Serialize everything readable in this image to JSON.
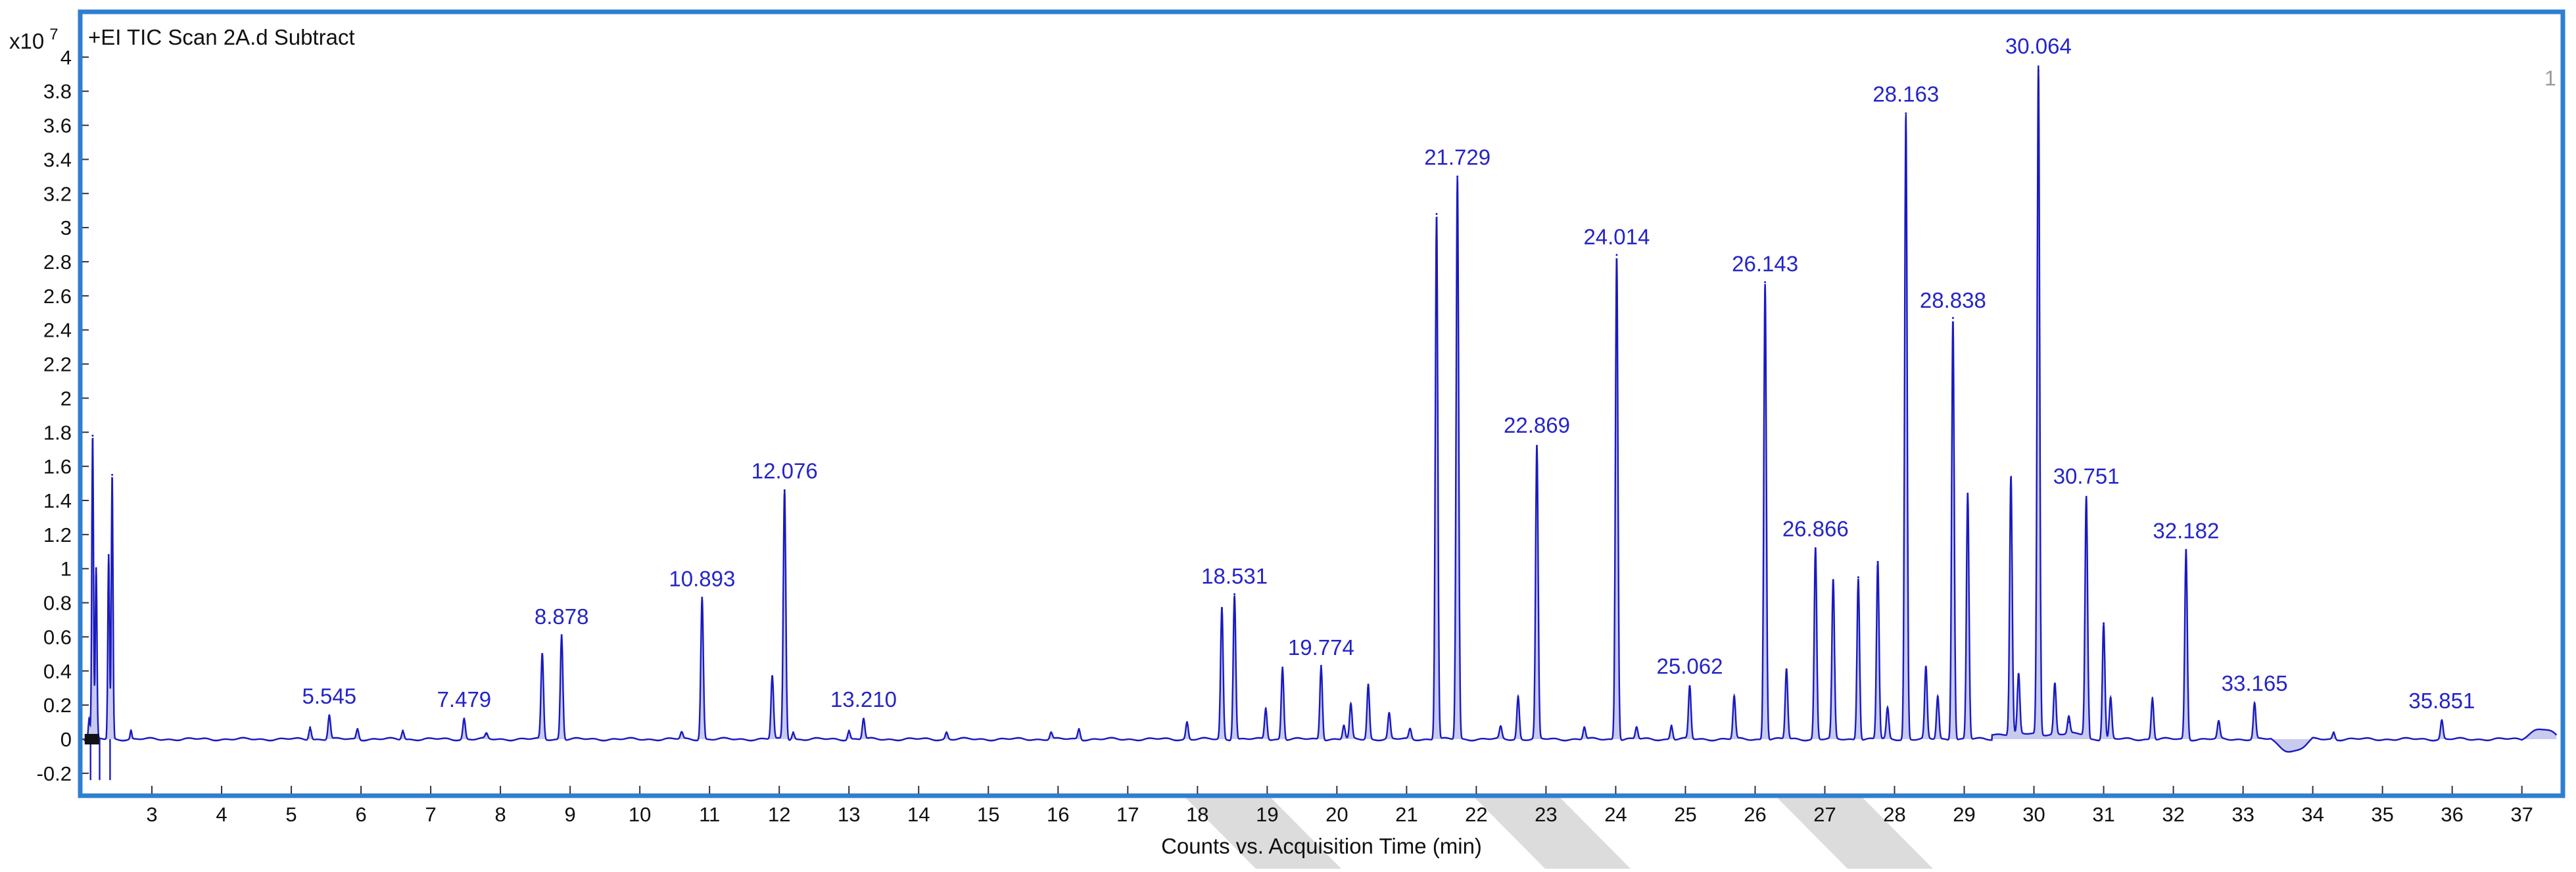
{
  "chart_data": {
    "type": "line",
    "title": "+EI TIC Scan 2A.d  Subtract",
    "corner_mark": "1",
    "xlabel": "Counts vs. Acquisition Time (min)",
    "y_multiplier": {
      "base": "x10",
      "exponent": "7"
    },
    "xlim": [
      2.0,
      37.55
    ],
    "ylim": [
      -0.32,
      4.25
    ],
    "x_ticks": [
      3,
      4,
      5,
      6,
      7,
      8,
      9,
      10,
      11,
      12,
      13,
      14,
      15,
      16,
      17,
      18,
      19,
      20,
      21,
      22,
      23,
      24,
      25,
      26,
      27,
      28,
      29,
      30,
      31,
      32,
      33,
      34,
      35,
      36,
      37
    ],
    "y_ticks": [
      -0.2,
      0,
      0.2,
      0.4,
      0.6,
      0.8,
      1,
      1.2,
      1.4,
      1.6,
      1.8,
      2,
      2.2,
      2.4,
      2.6,
      2.8,
      3,
      3.2,
      3.4,
      3.6,
      3.8,
      4
    ],
    "y_tick_labels": [
      "-0.2",
      "0",
      "0.2",
      "0.4",
      "0.6",
      "0.8",
      "1",
      "1.2",
      "1.4",
      "1.6",
      "1.8",
      "2",
      "2.2",
      "2.4",
      "2.6",
      "2.8",
      "3",
      "3.2",
      "3.4",
      "3.6",
      "3.8",
      "4"
    ],
    "peaks": [
      {
        "t": 2.1,
        "h": 0.12
      },
      {
        "t": 2.15,
        "h": 1.78
      },
      {
        "t": 2.2,
        "h": 1.0
      },
      {
        "t": 2.38,
        "h": 1.08
      },
      {
        "t": 2.43,
        "h": 1.55
      },
      {
        "t": 2.7,
        "h": 0.05
      },
      {
        "t": 5.27,
        "h": 0.07
      },
      {
        "t": 5.545,
        "h": 0.14
      },
      {
        "t": 5.95,
        "h": 0.06
      },
      {
        "t": 6.6,
        "h": 0.05
      },
      {
        "t": 7.479,
        "h": 0.12
      },
      {
        "t": 7.8,
        "h": 0.03
      },
      {
        "t": 8.6,
        "h": 0.5
      },
      {
        "t": 8.878,
        "h": 0.61
      },
      {
        "t": 10.6,
        "h": 0.04
      },
      {
        "t": 10.893,
        "h": 0.83
      },
      {
        "t": 11.9,
        "h": 0.37
      },
      {
        "t": 12.076,
        "h": 1.46
      },
      {
        "t": 12.2,
        "h": 0.04
      },
      {
        "t": 13.0,
        "h": 0.05
      },
      {
        "t": 13.21,
        "h": 0.12
      },
      {
        "t": 14.4,
        "h": 0.04
      },
      {
        "t": 15.9,
        "h": 0.04
      },
      {
        "t": 16.3,
        "h": 0.06
      },
      {
        "t": 17.85,
        "h": 0.1
      },
      {
        "t": 18.35,
        "h": 0.77
      },
      {
        "t": 18.531,
        "h": 0.85
      },
      {
        "t": 18.98,
        "h": 0.18
      },
      {
        "t": 19.22,
        "h": 0.42
      },
      {
        "t": 19.774,
        "h": 0.43
      },
      {
        "t": 20.1,
        "h": 0.08
      },
      {
        "t": 20.2,
        "h": 0.2
      },
      {
        "t": 20.45,
        "h": 0.32
      },
      {
        "t": 20.75,
        "h": 0.15
      },
      {
        "t": 21.05,
        "h": 0.06
      },
      {
        "t": 21.43,
        "h": 3.08
      },
      {
        "t": 21.729,
        "h": 3.3
      },
      {
        "t": 22.35,
        "h": 0.07
      },
      {
        "t": 22.6,
        "h": 0.25
      },
      {
        "t": 22.869,
        "h": 1.72
      },
      {
        "t": 23.55,
        "h": 0.07
      },
      {
        "t": 24.014,
        "h": 2.84
      },
      {
        "t": 24.3,
        "h": 0.07
      },
      {
        "t": 24.8,
        "h": 0.08
      },
      {
        "t": 25.062,
        "h": 0.31
      },
      {
        "t": 25.7,
        "h": 0.25
      },
      {
        "t": 26.143,
        "h": 2.68
      },
      {
        "t": 26.45,
        "h": 0.41
      },
      {
        "t": 26.866,
        "h": 1.12
      },
      {
        "t": 27.12,
        "h": 0.93
      },
      {
        "t": 27.48,
        "h": 0.95
      },
      {
        "t": 27.76,
        "h": 1.04
      },
      {
        "t": 27.9,
        "h": 0.18
      },
      {
        "t": 28.163,
        "h": 3.67
      },
      {
        "t": 28.45,
        "h": 0.42
      },
      {
        "t": 28.62,
        "h": 0.25
      },
      {
        "t": 28.838,
        "h": 2.47
      },
      {
        "t": 29.05,
        "h": 1.44
      },
      {
        "t": 29.67,
        "h": 1.52
      },
      {
        "t": 29.78,
        "h": 0.35
      },
      {
        "t": 30.064,
        "h": 3.92
      },
      {
        "t": 30.3,
        "h": 0.3
      },
      {
        "t": 30.5,
        "h": 0.1
      },
      {
        "t": 30.751,
        "h": 1.4
      },
      {
        "t": 31.0,
        "h": 0.68
      },
      {
        "t": 31.1,
        "h": 0.24
      },
      {
        "t": 31.7,
        "h": 0.24
      },
      {
        "t": 32.182,
        "h": 1.11
      },
      {
        "t": 32.65,
        "h": 0.1
      },
      {
        "t": 33.165,
        "h": 0.21
      },
      {
        "t": 34.3,
        "h": 0.04
      },
      {
        "t": 35.851,
        "h": 0.11
      }
    ],
    "labels": [
      {
        "t": 5.545,
        "text": "5.545"
      },
      {
        "t": 7.479,
        "text": "7.479"
      },
      {
        "t": 8.878,
        "text": "8.878"
      },
      {
        "t": 10.893,
        "text": "10.893"
      },
      {
        "t": 12.076,
        "text": "12.076"
      },
      {
        "t": 13.21,
        "text": "13.210"
      },
      {
        "t": 18.531,
        "text": "18.531"
      },
      {
        "t": 19.774,
        "text": "19.774"
      },
      {
        "t": 21.729,
        "text": "21.729"
      },
      {
        "t": 22.869,
        "text": "22.869"
      },
      {
        "t": 24.014,
        "text": "24.014"
      },
      {
        "t": 25.062,
        "text": "25.062"
      },
      {
        "t": 26.143,
        "text": "26.143"
      },
      {
        "t": 26.866,
        "text": "26.866"
      },
      {
        "t": 28.163,
        "text": "28.163"
      },
      {
        "t": 28.838,
        "text": "28.838"
      },
      {
        "t": 30.064,
        "text": "30.064"
      },
      {
        "t": 30.751,
        "text": "30.751"
      },
      {
        "t": 32.182,
        "text": "32.182"
      },
      {
        "t": 33.165,
        "text": "33.165"
      },
      {
        "t": 35.851,
        "text": "35.851"
      }
    ],
    "grid": false,
    "line_color": "#1a1ac0",
    "fill_color": "#c8cbee",
    "frame_color": "#2f7fd1",
    "label_color": "#2424c8",
    "watermark_color": "#dcdcdc"
  }
}
